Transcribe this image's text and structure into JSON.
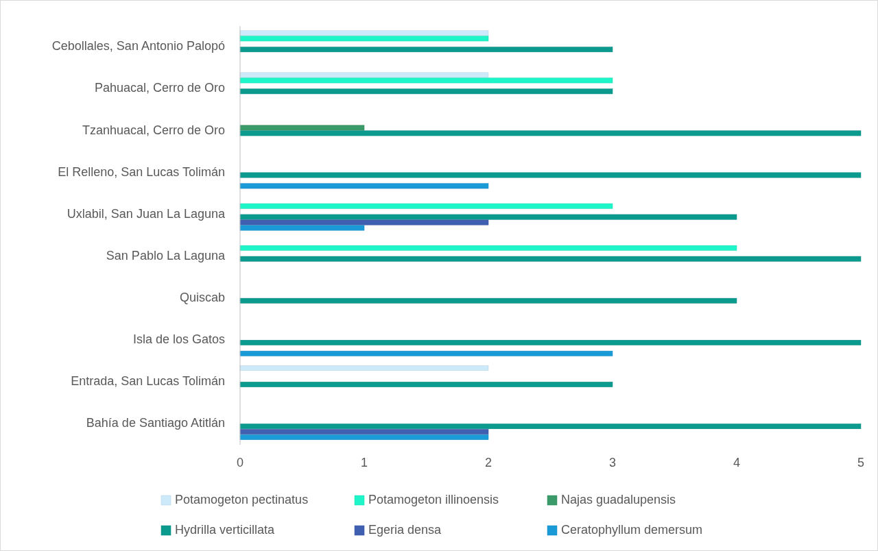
{
  "chart_data": {
    "type": "bar",
    "orientation": "horizontal",
    "categories": [
      "Cebollales, San Antonio Palopó",
      "Pahuacal, Cerro de Oro",
      "Tzanhuacal, Cerro de Oro",
      "El Relleno, San Lucas Tolimán",
      "Uxlabil, San Juan La Laguna",
      "San Pablo La Laguna",
      "Quiscab",
      "Isla de los Gatos",
      "Entrada, San Lucas Tolimán",
      "Bahía de Santiago Atitlán"
    ],
    "series": [
      {
        "name": "Potamogeton pectinatus",
        "color": "#cceaf9",
        "values": [
          2,
          2,
          null,
          null,
          null,
          null,
          null,
          null,
          2,
          null
        ]
      },
      {
        "name": "Potamogeton illinoensis",
        "color": "#1ef5c8",
        "values": [
          2,
          3,
          null,
          null,
          3,
          4,
          null,
          null,
          null,
          null
        ]
      },
      {
        "name": "Najas guadalupensis",
        "color": "#3a9a6a",
        "values": [
          null,
          null,
          1,
          null,
          null,
          null,
          null,
          null,
          null,
          null
        ]
      },
      {
        "name": "Hydrilla verticillata",
        "color": "#0a9a8e",
        "values": [
          3,
          3,
          5,
          5,
          4,
          5,
          4,
          5,
          3,
          5
        ]
      },
      {
        "name": "Egeria densa",
        "color": "#3f5fb0",
        "values": [
          null,
          null,
          null,
          null,
          2,
          null,
          null,
          null,
          null,
          2
        ]
      },
      {
        "name": "Ceratophyllum demersum",
        "color": "#1a9ad6",
        "values": [
          null,
          null,
          null,
          2,
          1,
          null,
          null,
          3,
          null,
          2
        ]
      }
    ],
    "xlim": [
      0,
      5
    ],
    "xticks": [
      0,
      1,
      2,
      3,
      4,
      5
    ],
    "legend": "bottom"
  }
}
